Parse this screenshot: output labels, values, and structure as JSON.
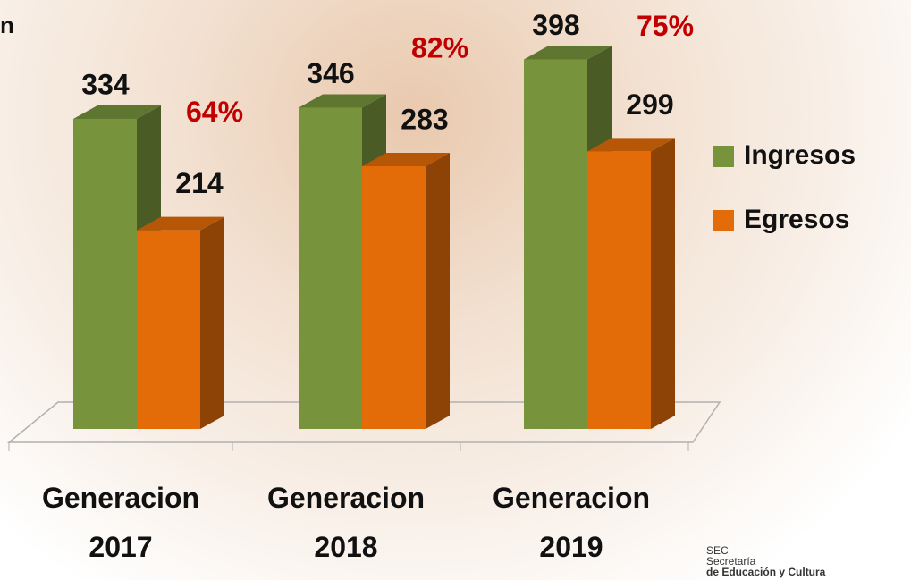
{
  "chart_data": {
    "type": "bar3d",
    "title": "n",
    "categories": [
      "Generacion 2017",
      "Generacion 2018",
      "Generacion 2019"
    ],
    "series": [
      {
        "name": "Ingresos",
        "color": "#77933c",
        "values": [
          334,
          346,
          398
        ]
      },
      {
        "name": "Egresos",
        "color": "#e36c09",
        "values": [
          214,
          283,
          299
        ]
      }
    ],
    "annotations": [
      "64%",
      "82%",
      "75%"
    ],
    "annotation_color": "#c00000",
    "ylim": [
      0,
      450
    ],
    "legend": "right"
  },
  "footer": [
    "SEC",
    "Secretaría",
    "de Educación y Cultura"
  ]
}
